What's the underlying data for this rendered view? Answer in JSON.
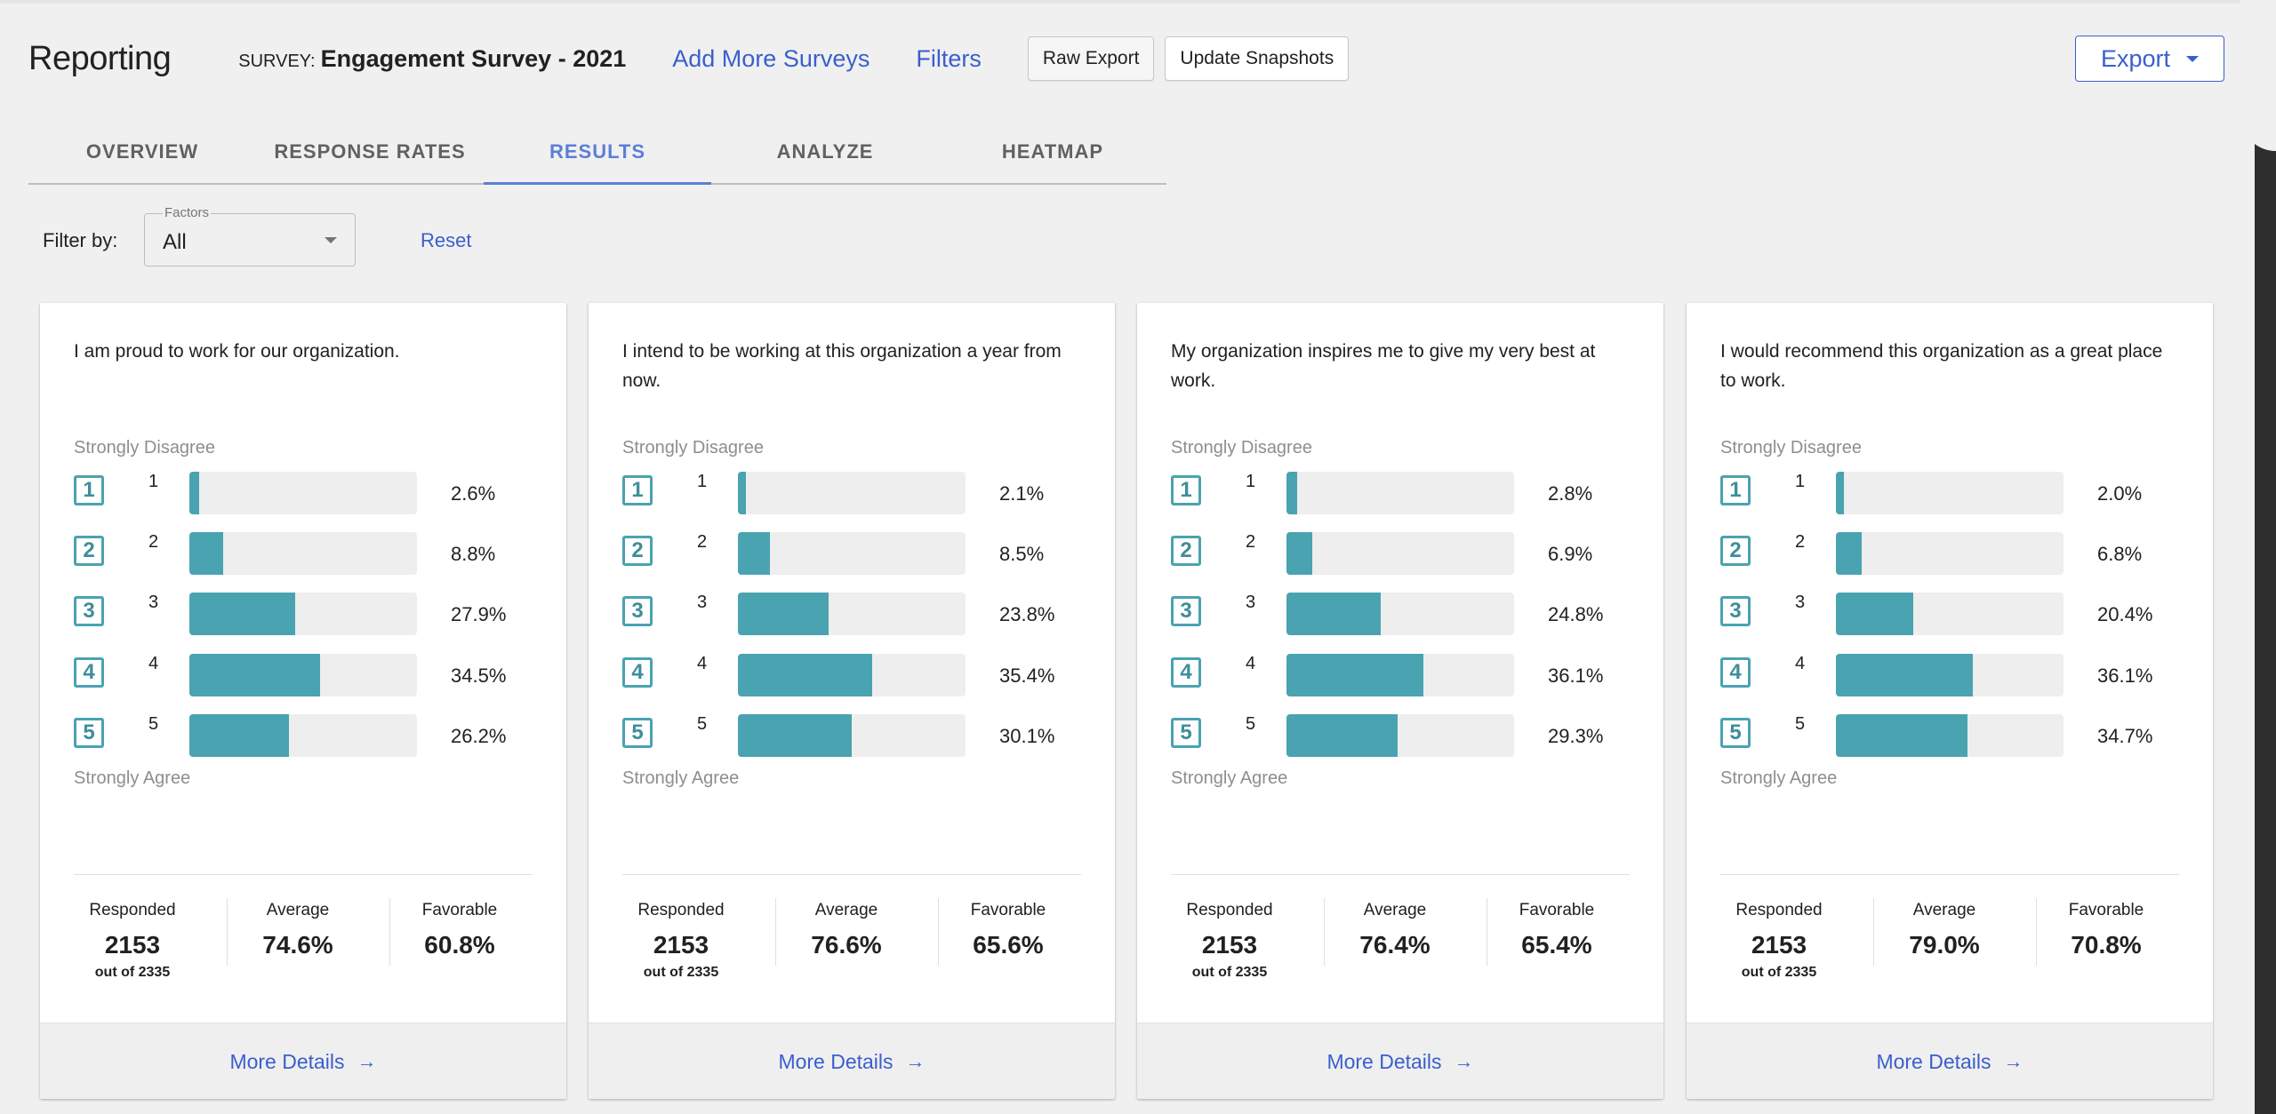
{
  "app": {
    "title": "Reporting"
  },
  "survey": {
    "prefix": "SURVEY:",
    "name": "Engagement Survey - 2021"
  },
  "header": {
    "add_surveys": "Add More Surveys",
    "filters": "Filters",
    "raw_export": "Raw Export",
    "update_snapshots": "Update Snapshots",
    "export": "Export"
  },
  "tabs": [
    "OVERVIEW",
    "RESPONSE RATES",
    "RESULTS",
    "ANALYZE",
    "HEATMAP"
  ],
  "active_tab": "RESULTS",
  "filter": {
    "label": "Filter by:",
    "select_legend": "Factors",
    "select_value": "All",
    "reset": "Reset"
  },
  "scale": {
    "top": "Strongly Disagree",
    "bottom": "Strongly Agree"
  },
  "stats_labels": {
    "responded": "Responded",
    "average": "Average",
    "favorable": "Favorable"
  },
  "footer_link": "More Details",
  "colors": {
    "accent": "#4aa3b0",
    "link": "#3a5fcd",
    "active_tab": "#5b7fd6"
  },
  "cards": [
    {
      "question": "I am proud to work for our organization.",
      "rows": [
        {
          "n": "1",
          "pct": "2.6%",
          "value": 2.6
        },
        {
          "n": "2",
          "pct": "8.8%",
          "value": 8.8
        },
        {
          "n": "3",
          "pct": "27.9%",
          "value": 27.9
        },
        {
          "n": "4",
          "pct": "34.5%",
          "value": 34.5
        },
        {
          "n": "5",
          "pct": "26.2%",
          "value": 26.2
        }
      ],
      "responded": "2153",
      "out_of": "out of 2335",
      "average": "74.6%",
      "favorable": "60.8%"
    },
    {
      "question": "I intend to be working at this organization a year from now.",
      "rows": [
        {
          "n": "1",
          "pct": "2.1%",
          "value": 2.1
        },
        {
          "n": "2",
          "pct": "8.5%",
          "value": 8.5
        },
        {
          "n": "3",
          "pct": "23.8%",
          "value": 23.8
        },
        {
          "n": "4",
          "pct": "35.4%",
          "value": 35.4
        },
        {
          "n": "5",
          "pct": "30.1%",
          "value": 30.1
        }
      ],
      "responded": "2153",
      "out_of": "out of 2335",
      "average": "76.6%",
      "favorable": "65.6%"
    },
    {
      "question": "My organization inspires me to give my very best at work.",
      "rows": [
        {
          "n": "1",
          "pct": "2.8%",
          "value": 2.8
        },
        {
          "n": "2",
          "pct": "6.9%",
          "value": 6.9
        },
        {
          "n": "3",
          "pct": "24.8%",
          "value": 24.8
        },
        {
          "n": "4",
          "pct": "36.1%",
          "value": 36.1
        },
        {
          "n": "5",
          "pct": "29.3%",
          "value": 29.3
        }
      ],
      "responded": "2153",
      "out_of": "out of 2335",
      "average": "76.4%",
      "favorable": "65.4%"
    },
    {
      "question": "I would recommend this organization as a great place to work.",
      "rows": [
        {
          "n": "1",
          "pct": "2.0%",
          "value": 2.0
        },
        {
          "n": "2",
          "pct": "6.8%",
          "value": 6.8
        },
        {
          "n": "3",
          "pct": "20.4%",
          "value": 20.4
        },
        {
          "n": "4",
          "pct": "36.1%",
          "value": 36.1
        },
        {
          "n": "5",
          "pct": "34.7%",
          "value": 34.7
        }
      ],
      "responded": "2153",
      "out_of": "out of 2335",
      "average": "79.0%",
      "favorable": "70.8%"
    }
  ]
}
